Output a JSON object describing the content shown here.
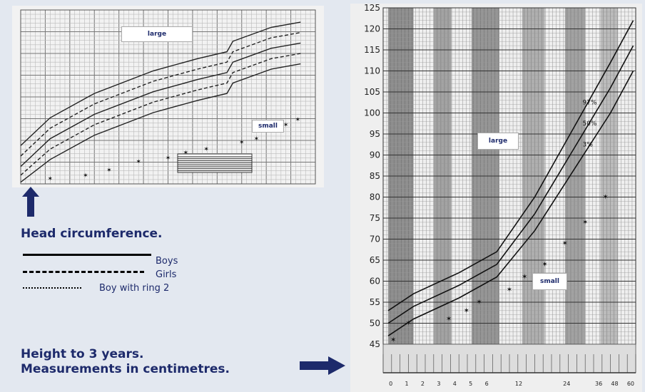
{
  "head_chart": {
    "large_label": "large",
    "small_label": "small"
  },
  "height_chart": {
    "large_label": "large",
    "small_label": "small"
  },
  "captions": {
    "head": "Head circumference.",
    "height_line1": "Height to 3 years.",
    "height_line2": "Measurements in centimetres."
  },
  "legend": [
    {
      "label": "Boys",
      "style": "solid"
    },
    {
      "label": "Girls",
      "style": "dashed"
    },
    {
      "label": "Boy with ring 2",
      "style": "dotted"
    }
  ],
  "colors": {
    "background": "#e3e8f0",
    "text": "#1d2a6b",
    "arrow": "#1d2a6b"
  },
  "chart_data": [
    {
      "type": "line",
      "curves": [
        {
          "points": [
            [
              0,
              0.78
            ],
            [
              0.1,
              0.62
            ],
            [
              0.25,
              0.48
            ],
            [
              0.45,
              0.35
            ],
            [
              0.6,
              0.28
            ],
            [
              0.7,
              0.24
            ],
            [
              0.72,
              0.18
            ],
            [
              0.85,
              0.1
            ],
            [
              0.95,
              0.07
            ]
          ]
        },
        {
          "points": [
            [
              0,
              0.84
            ],
            [
              0.1,
              0.68
            ],
            [
              0.25,
              0.54
            ],
            [
              0.45,
              0.41
            ],
            [
              0.6,
              0.34
            ],
            [
              0.7,
              0.3
            ],
            [
              0.72,
              0.24
            ],
            [
              0.85,
              0.16
            ],
            [
              0.95,
              0.13
            ]
          ]
        },
        {
          "points": [
            [
              0,
              0.9
            ],
            [
              0.1,
              0.74
            ],
            [
              0.25,
              0.6
            ],
            [
              0.45,
              0.47
            ],
            [
              0.6,
              0.4
            ],
            [
              0.7,
              0.36
            ],
            [
              0.72,
              0.3
            ],
            [
              0.85,
              0.22
            ],
            [
              0.95,
              0.19
            ]
          ]
        },
        {
          "points": [
            [
              0,
              0.95
            ],
            [
              0.1,
              0.8
            ],
            [
              0.25,
              0.66
            ],
            [
              0.45,
              0.53
            ],
            [
              0.6,
              0.46
            ],
            [
              0.7,
              0.42
            ],
            [
              0.72,
              0.36
            ],
            [
              0.85,
              0.28
            ],
            [
              0.95,
              0.25
            ]
          ]
        },
        {
          "points": [
            [
              0,
              0.99
            ],
            [
              0.1,
              0.86
            ],
            [
              0.25,
              0.72
            ],
            [
              0.45,
              0.59
            ],
            [
              0.6,
              0.52
            ],
            [
              0.7,
              0.48
            ],
            [
              0.72,
              0.42
            ],
            [
              0.85,
              0.34
            ],
            [
              0.95,
              0.31
            ]
          ]
        }
      ],
      "marks": [
        [
          0.1,
          0.97
        ],
        [
          0.22,
          0.95
        ],
        [
          0.3,
          0.92
        ],
        [
          0.4,
          0.87
        ],
        [
          0.5,
          0.85
        ],
        [
          0.56,
          0.82
        ],
        [
          0.63,
          0.8
        ],
        [
          0.75,
          0.76
        ],
        [
          0.8,
          0.74
        ],
        [
          0.86,
          0.68
        ],
        [
          0.9,
          0.66
        ],
        [
          0.94,
          0.63
        ]
      ]
    },
    {
      "type": "line",
      "ylim": [
        45,
        125
      ],
      "yticks": [
        45,
        50,
        55,
        60,
        65,
        70,
        75,
        80,
        85,
        90,
        95,
        100,
        105,
        110,
        115,
        120,
        125
      ],
      "xtick_labels": [
        "0",
        "1",
        "2",
        "3",
        "4",
        "5",
        "6",
        "",
        "12",
        "",
        "",
        "24",
        "",
        "36",
        "48",
        "60"
      ],
      "curves": [
        {
          "label": "97%",
          "points": [
            [
              0.02,
              53
            ],
            [
              0.12,
              57
            ],
            [
              0.3,
              62
            ],
            [
              0.45,
              67
            ],
            [
              0.6,
              80
            ],
            [
              0.75,
              96
            ],
            [
              0.9,
              112
            ],
            [
              0.99,
              122
            ]
          ]
        },
        {
          "label": "50%",
          "points": [
            [
              0.02,
              50
            ],
            [
              0.12,
              54
            ],
            [
              0.3,
              59
            ],
            [
              0.45,
              64
            ],
            [
              0.6,
              76
            ],
            [
              0.75,
              91
            ],
            [
              0.9,
              106
            ],
            [
              0.99,
              116
            ]
          ]
        },
        {
          "label": "3%",
          "points": [
            [
              0.02,
              47
            ],
            [
              0.12,
              51
            ],
            [
              0.3,
              56
            ],
            [
              0.45,
              61
            ],
            [
              0.6,
              72
            ],
            [
              0.75,
              86
            ],
            [
              0.9,
              100
            ],
            [
              0.99,
              110
            ]
          ]
        }
      ],
      "marks": [
        [
          0.04,
          46
        ],
        [
          0.1,
          50
        ],
        [
          0.26,
          51
        ],
        [
          0.33,
          53
        ],
        [
          0.38,
          55
        ],
        [
          0.5,
          58
        ],
        [
          0.56,
          61
        ],
        [
          0.64,
          64
        ],
        [
          0.72,
          69
        ],
        [
          0.8,
          74
        ],
        [
          0.88,
          80
        ]
      ]
    }
  ]
}
